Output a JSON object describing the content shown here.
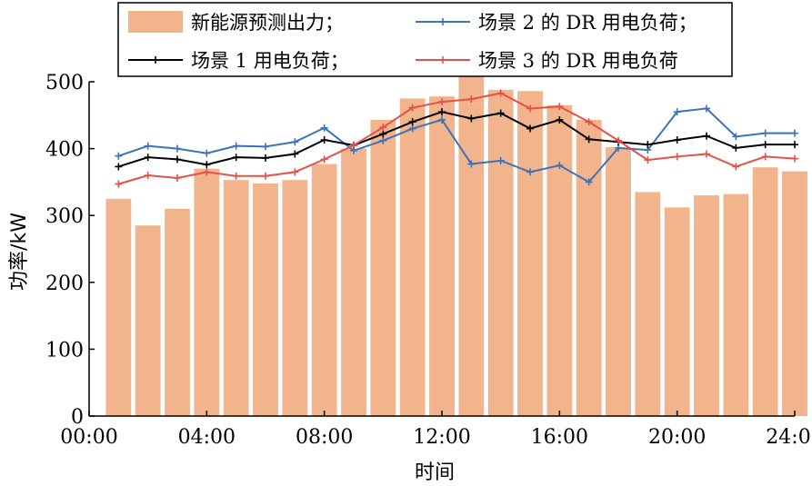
{
  "chart_data": {
    "type": "bar",
    "xlabel": "时间",
    "ylabel": "功率/kW",
    "xlim": [
      0,
      24
    ],
    "ylim": [
      0,
      500
    ],
    "x_ticks": [
      0,
      4,
      8,
      12,
      16,
      20,
      24
    ],
    "x_tick_labels": [
      "00:00",
      "04:00",
      "08:00",
      "12:00",
      "16:00",
      "20:00",
      "24:00"
    ],
    "y_ticks": [
      0,
      100,
      200,
      300,
      400,
      500
    ],
    "y_tick_labels": [
      "0",
      "100",
      "200",
      "300",
      "400",
      "500"
    ],
    "grid": false,
    "legend_position": "top",
    "x": [
      1,
      2,
      3,
      4,
      5,
      6,
      7,
      8,
      9,
      10,
      11,
      12,
      13,
      14,
      15,
      16,
      17,
      18,
      19,
      20,
      21,
      22,
      23,
      24
    ],
    "series": [
      {
        "name": "新能源预测出力",
        "type": "bar",
        "color": "#f1b48d",
        "values": [
          325,
          285,
          310,
          370,
          353,
          348,
          353,
          377,
          400,
          443,
          475,
          478,
          508,
          488,
          486,
          465,
          443,
          402,
          335,
          312,
          330,
          332,
          372,
          366
        ]
      },
      {
        "name": "场景 1 用电负荷",
        "type": "line",
        "color": "#000000",
        "marker": "plus",
        "values": [
          373,
          387,
          384,
          376,
          387,
          386,
          392,
          413,
          405,
          422,
          440,
          455,
          445,
          453,
          430,
          443,
          414,
          410,
          406,
          413,
          419,
          401,
          406,
          406
        ]
      },
      {
        "name": "场景 2 的 DR 用电负荷",
        "type": "line",
        "color": "#3b73b9",
        "marker": "plus",
        "values": [
          389,
          404,
          400,
          393,
          404,
          403,
          410,
          431,
          397,
          412,
          430,
          443,
          377,
          382,
          365,
          375,
          350,
          401,
          398,
          455,
          460,
          418,
          423,
          423
        ]
      },
      {
        "name": "场景 3 的 DR 用电负荷",
        "type": "line",
        "color": "#e5514a",
        "marker": "plus",
        "values": [
          347,
          360,
          356,
          365,
          359,
          359,
          365,
          384,
          405,
          432,
          461,
          470,
          474,
          483,
          460,
          463,
          440,
          412,
          383,
          388,
          392,
          373,
          388,
          385
        ]
      }
    ],
    "legend_rows": [
      [
        {
          "label": "新能源预测出力；",
          "series": 0
        },
        {
          "label": "场景 2 的 DR 用电负荷；",
          "series": 2
        }
      ],
      [
        {
          "label": "场景 1 用电负荷；",
          "series": 1
        },
        {
          "label": "场景 3 的 DR 用电负荷",
          "series": 3
        }
      ]
    ]
  }
}
